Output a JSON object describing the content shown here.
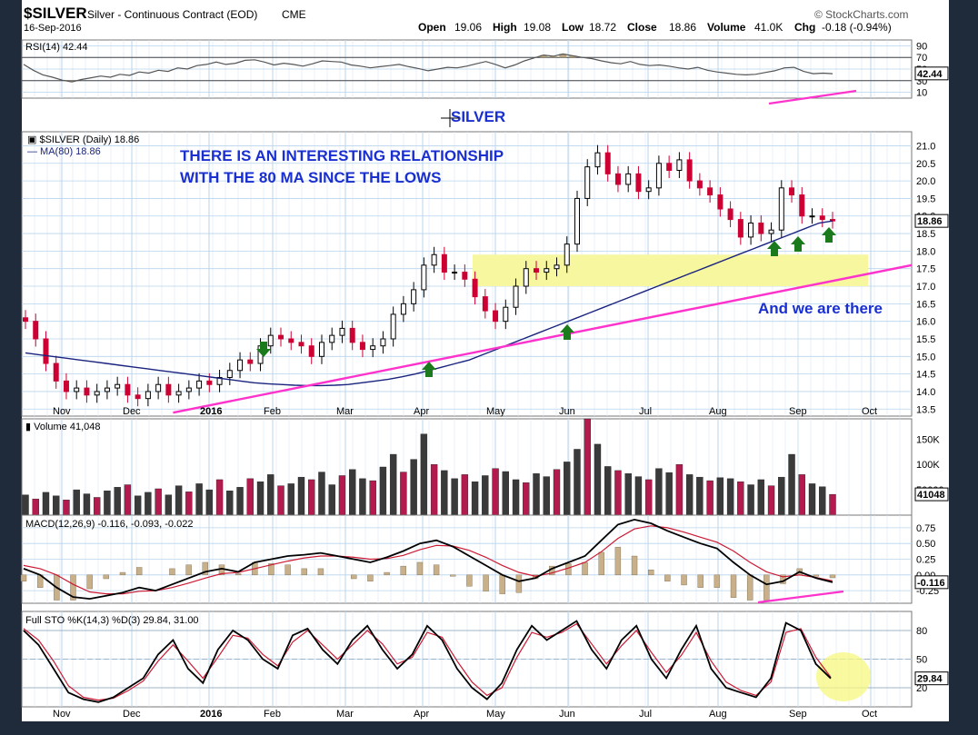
{
  "header": {
    "symbol": "$SILVER",
    "name": "Silver - Continuous Contract (EOD)",
    "exchange": "CME",
    "date": "16-Sep-2016",
    "source": "© StockCharts.com",
    "open_label": "Open",
    "open": "19.06",
    "high_label": "High",
    "high": "19.08",
    "low_label": "Low",
    "low": "18.72",
    "close_label": "Close",
    "close": "18.86",
    "volume_label": "Volume",
    "volume": "41.0K",
    "chg_label": "Chg",
    "chg": "-0.18 (-0.94%)",
    "watermark": "SILVER"
  },
  "colors": {
    "up": "#000000",
    "down": "#cc0033",
    "ma": "#1a237e",
    "trend": "#ff33cc",
    "annotation": "#1a2fd0",
    "arrow": "#1b7a1b",
    "zone": "#f7f7a0",
    "grid": "#b8d4ee"
  },
  "months": [
    "Nov",
    "Dec",
    "2016",
    "Feb",
    "Mar",
    "Apr",
    "May",
    "Jun",
    "Jul",
    "Aug",
    "Sep",
    "Oct"
  ],
  "chart_data": [
    {
      "type": "line",
      "panel": "rsi",
      "legend": "RSI(14) 42.44",
      "current": "42.44",
      "ylim": [
        0,
        100
      ],
      "yticks": [
        "90",
        "70",
        "50",
        "30",
        "10"
      ],
      "reference_lines": [
        70,
        30
      ],
      "values": [
        58,
        48,
        40,
        36,
        31,
        28,
        32,
        35,
        38,
        36,
        41,
        39,
        45,
        43,
        48,
        46,
        52,
        50,
        56,
        58,
        62,
        58,
        60,
        65,
        66,
        62,
        57,
        60,
        58,
        55,
        59,
        64,
        63,
        62,
        57,
        55,
        52,
        54,
        56,
        58,
        54,
        51,
        47,
        50,
        53,
        52,
        55,
        59,
        63,
        58,
        52,
        57,
        64,
        69,
        74,
        72,
        76,
        73,
        70,
        68,
        64,
        61,
        59,
        63,
        58,
        56,
        57,
        55,
        52,
        50,
        53,
        48,
        45,
        43,
        41,
        40,
        41,
        44,
        47,
        52,
        53,
        46,
        42,
        43,
        42
      ]
    },
    {
      "type": "candlestick",
      "panel": "price",
      "legend_symbol": "$SILVER (Daily) 18.86",
      "legend_ma": "MA(80) 18.86",
      "current": "18.86",
      "ylim": [
        13.3,
        21.4
      ],
      "yticks": [
        "21.0",
        "20.5",
        "20.0",
        "19.5",
        "19.0",
        "18.5",
        "18.0",
        "17.5",
        "17.0",
        "16.5",
        "16.0",
        "15.5",
        "15.0",
        "14.5",
        "14.0",
        "13.5"
      ],
      "close": [
        16.0,
        15.5,
        14.8,
        14.3,
        14.0,
        14.1,
        13.9,
        14.0,
        14.1,
        14.2,
        13.9,
        13.8,
        14.0,
        14.2,
        13.9,
        14.0,
        14.1,
        14.3,
        14.2,
        14.4,
        14.6,
        14.9,
        14.8,
        15.3,
        15.6,
        15.5,
        15.4,
        15.3,
        15.0,
        15.4,
        15.6,
        15.8,
        15.4,
        15.2,
        15.3,
        15.5,
        16.2,
        16.5,
        16.9,
        17.6,
        17.9,
        17.4,
        17.4,
        17.2,
        16.7,
        16.3,
        16.0,
        16.4,
        17.0,
        17.5,
        17.4,
        17.5,
        17.6,
        18.2,
        19.5,
        20.4,
        20.8,
        20.2,
        19.9,
        20.2,
        19.7,
        19.8,
        20.5,
        20.3,
        20.6,
        20.0,
        19.8,
        19.6,
        19.2,
        18.9,
        18.4,
        18.8,
        18.5,
        18.6,
        19.8,
        19.6,
        19.0,
        19.0,
        18.9,
        18.86
      ],
      "ma80": [
        15.1,
        15.05,
        15.0,
        14.95,
        14.9,
        14.85,
        14.8,
        14.75,
        14.7,
        14.65,
        14.6,
        14.55,
        14.5,
        14.45,
        14.4,
        14.35,
        14.3,
        14.25,
        14.22,
        14.2,
        14.18,
        14.17,
        14.17,
        14.18,
        14.2,
        14.25,
        14.3,
        14.35,
        14.42,
        14.5,
        14.6,
        14.7,
        14.8,
        14.9,
        15.05,
        15.2,
        15.35,
        15.5,
        15.65,
        15.8,
        15.95,
        16.1,
        16.25,
        16.4,
        16.55,
        16.7,
        16.85,
        17.0,
        17.15,
        17.3,
        17.45,
        17.6,
        17.75,
        17.9,
        18.05,
        18.2,
        18.35,
        18.5,
        18.65,
        18.8,
        18.86
      ],
      "trendline": [
        [
          0.17,
          13.4
        ],
        [
          1.0,
          17.6
        ]
      ],
      "zone": [
        17.0,
        17.9
      ],
      "annotations": [
        "THERE IS AN INTERESTING RELATIONSHIP",
        "WITH THE 80 MA SINCE THE LOWS",
        "And we are there"
      ]
    },
    {
      "type": "bar",
      "panel": "volume",
      "legend": "Volume 41,048",
      "current": "41048",
      "ylim": [
        0,
        190000
      ],
      "yticks": [
        "150K",
        "100K",
        "50000"
      ],
      "values": [
        40,
        32,
        45,
        38,
        30,
        50,
        42,
        35,
        48,
        55,
        60,
        38,
        45,
        52,
        40,
        58,
        46,
        62,
        50,
        70,
        48,
        55,
        72,
        66,
        80,
        58,
        62,
        75,
        70,
        85,
        60,
        78,
        90,
        72,
        68,
        95,
        120,
        85,
        110,
        160,
        100,
        88,
        72,
        80,
        66,
        78,
        92,
        86,
        70,
        64,
        82,
        76,
        90,
        105,
        130,
        190,
        140,
        96,
        88,
        82,
        76,
        70,
        92,
        84,
        100,
        80,
        75,
        68,
        74,
        72,
        66,
        60,
        70,
        58,
        75,
        120,
        80,
        62,
        56,
        41
      ]
    },
    {
      "type": "line",
      "panel": "macd",
      "legend": "MACD(12,26,9) -0.116, -0.093, -0.022",
      "current": "-0.116",
      "ylim": [
        -0.45,
        0.95
      ],
      "yticks": [
        "0.75",
        "0.50",
        "0.25",
        "0.00",
        "-0.25"
      ],
      "series": [
        {
          "name": "MACD",
          "values": [
            0.1,
            0.0,
            -0.2,
            -0.35,
            -0.38,
            -0.33,
            -0.28,
            -0.2,
            -0.25,
            -0.15,
            -0.05,
            0.05,
            0.1,
            0.05,
            0.2,
            0.25,
            0.3,
            0.32,
            0.35,
            0.3,
            0.25,
            0.2,
            0.28,
            0.38,
            0.5,
            0.55,
            0.45,
            0.3,
            0.15,
            0.0,
            -0.1,
            -0.05,
            0.1,
            0.2,
            0.3,
            0.55,
            0.8,
            0.88,
            0.82,
            0.7,
            0.6,
            0.5,
            0.42,
            0.2,
            0.0,
            -0.15,
            -0.1,
            0.05,
            -0.05,
            -0.116
          ]
        },
        {
          "name": "Signal",
          "values": [
            0.15,
            0.1,
            0.0,
            -0.15,
            -0.27,
            -0.3,
            -0.3,
            -0.26,
            -0.25,
            -0.2,
            -0.13,
            -0.05,
            0.02,
            0.04,
            0.1,
            0.16,
            0.22,
            0.27,
            0.3,
            0.3,
            0.28,
            0.25,
            0.26,
            0.31,
            0.4,
            0.47,
            0.46,
            0.39,
            0.28,
            0.15,
            0.04,
            -0.02,
            0.03,
            0.11,
            0.2,
            0.37,
            0.58,
            0.73,
            0.78,
            0.75,
            0.68,
            0.6,
            0.52,
            0.38,
            0.2,
            0.05,
            -0.03,
            0.0,
            -0.04,
            -0.093
          ]
        }
      ]
    },
    {
      "type": "line",
      "panel": "stochastic",
      "legend": "Full STO %K(14,3) %D(3) 29.84, 31.00",
      "current": "29.84",
      "ylim": [
        0,
        100
      ],
      "yticks": [
        "80",
        "50",
        "20"
      ],
      "reference_lines": [
        80,
        50,
        20
      ],
      "series": [
        {
          "name": "%K",
          "values": [
            80,
            65,
            40,
            15,
            8,
            5,
            10,
            20,
            30,
            55,
            70,
            40,
            25,
            60,
            80,
            70,
            50,
            40,
            75,
            82,
            60,
            45,
            70,
            85,
            60,
            40,
            55,
            85,
            70,
            40,
            20,
            8,
            25,
            60,
            85,
            70,
            80,
            90,
            60,
            40,
            70,
            85,
            50,
            30,
            60,
            85,
            40,
            20,
            15,
            10,
            30,
            88,
            80,
            45,
            29.84
          ]
        },
        {
          "name": "%D",
          "values": [
            82,
            70,
            48,
            22,
            10,
            7,
            9,
            17,
            27,
            48,
            65,
            48,
            30,
            52,
            75,
            72,
            55,
            43,
            68,
            80,
            65,
            50,
            65,
            80,
            66,
            45,
            52,
            78,
            73,
            48,
            26,
            12,
            20,
            52,
            78,
            73,
            78,
            87,
            66,
            45,
            64,
            80,
            57,
            36,
            54,
            78,
            48,
            26,
            17,
            12,
            26,
            78,
            82,
            52,
            31.0
          ]
        }
      ]
    }
  ]
}
